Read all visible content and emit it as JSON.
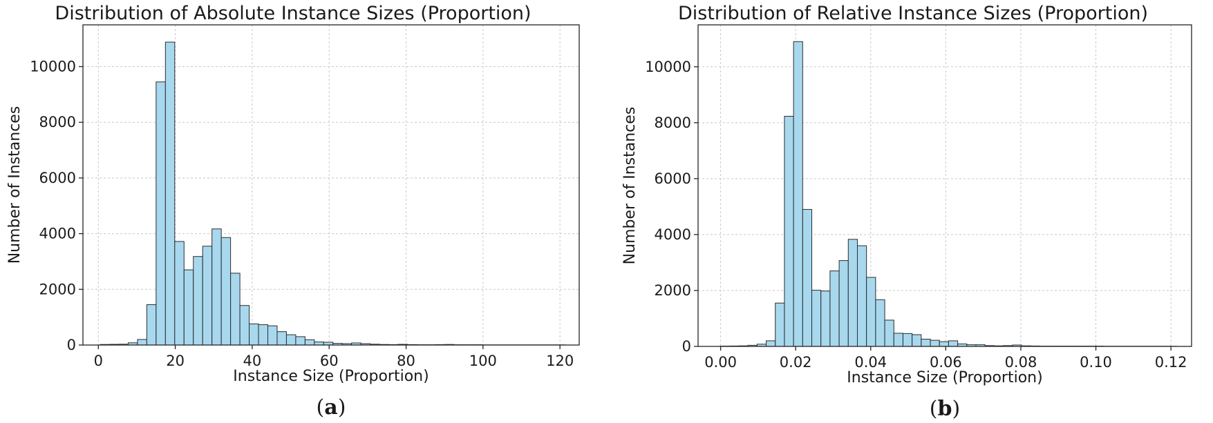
{
  "chart_data": [
    {
      "type": "bar",
      "title": "Distribution of Absolute Instance Sizes (Proportion)",
      "xlabel": "Instance Size (Proportion)",
      "ylabel": "Number of Instances",
      "panel_prefix": "(",
      "panel_letter": "a",
      "panel_suffix": ")",
      "xlim": [
        -4,
        125
      ],
      "ylim": [
        0,
        11500
      ],
      "xticks": [
        0,
        20,
        40,
        60,
        80,
        100,
        120
      ],
      "xtick_labels": [
        "0",
        "20",
        "40",
        "60",
        "80",
        "100",
        "120"
      ],
      "yticks": [
        0,
        2000,
        4000,
        6000,
        8000,
        10000
      ],
      "ytick_labels": [
        "0",
        "2000",
        "4000",
        "6000",
        "8000",
        "10000"
      ],
      "grid": true,
      "bar_color": "#a8d8ee",
      "bin_start": 0.5,
      "bin_width": 2.42,
      "values": [
        20,
        25,
        30,
        80,
        200,
        1450,
        9450,
        10880,
        3720,
        2700,
        3180,
        3550,
        4170,
        3860,
        2580,
        1420,
        760,
        730,
        690,
        480,
        370,
        300,
        190,
        110,
        100,
        60,
        50,
        75,
        50,
        30,
        20,
        15,
        25,
        15,
        10,
        10,
        15,
        20,
        10,
        10,
        10,
        5,
        5,
        5,
        5,
        5,
        5,
        5,
        5,
        5
      ]
    },
    {
      "type": "bar",
      "title": "Distribution of Relative Instance Sizes (Proportion)",
      "xlabel": "Instance Size (Proportion)",
      "ylabel": "Number of Instances",
      "panel_prefix": "(",
      "panel_letter": "b",
      "panel_suffix": ")",
      "xlim": [
        -0.006,
        0.1255
      ],
      "ylim": [
        0,
        11500
      ],
      "xticks": [
        0.0,
        0.02,
        0.04,
        0.06,
        0.08,
        0.1,
        0.12
      ],
      "xtick_labels": [
        "0.00",
        "0.02",
        "0.04",
        "0.06",
        "0.08",
        "0.10",
        "0.12"
      ],
      "yticks": [
        0,
        2000,
        4000,
        6000,
        8000,
        10000
      ],
      "ytick_labels": [
        "0",
        "2000",
        "4000",
        "6000",
        "8000",
        "10000"
      ],
      "grid": true,
      "bar_color": "#a8d8ee",
      "bin_start": 0.0,
      "bin_width": 0.00243,
      "values": [
        10,
        15,
        20,
        40,
        80,
        200,
        1550,
        8230,
        10900,
        4900,
        2010,
        1980,
        2700,
        3070,
        3830,
        3600,
        2470,
        1670,
        940,
        470,
        460,
        420,
        260,
        220,
        170,
        200,
        90,
        60,
        60,
        30,
        20,
        30,
        50,
        20,
        15,
        10,
        10,
        10,
        10,
        10,
        10,
        10,
        5,
        5,
        5,
        5,
        5,
        5,
        5,
        5
      ]
    }
  ]
}
